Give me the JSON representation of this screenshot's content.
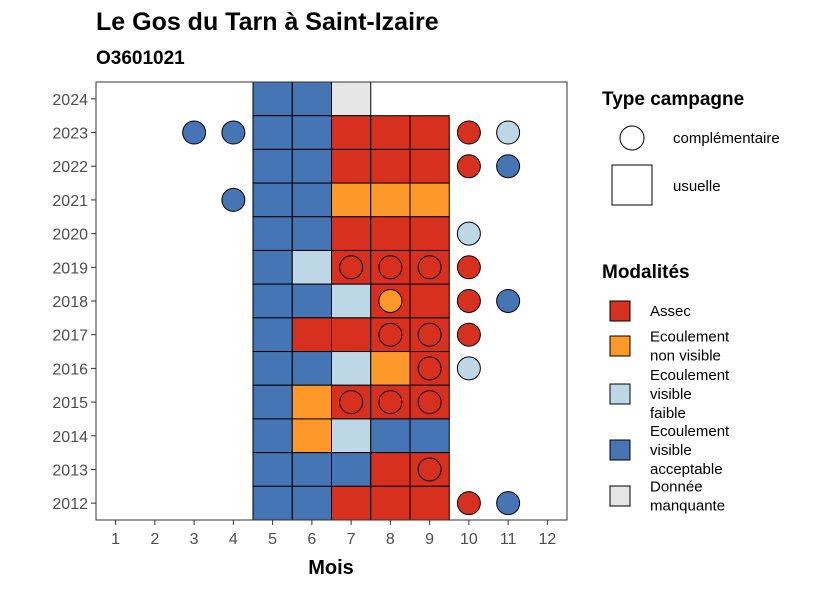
{
  "chart_data": {
    "type": "heatmap",
    "title": "Le Gos du Tarn à Saint-Izaire",
    "subtitle": "O3601021",
    "xlabel": "Mois",
    "ylabel": "",
    "x_ticks": [
      "1",
      "2",
      "3",
      "4",
      "5",
      "6",
      "7",
      "8",
      "9",
      "10",
      "11",
      "12"
    ],
    "y_ticks": [
      "2012",
      "2013",
      "2014",
      "2015",
      "2016",
      "2017",
      "2018",
      "2019",
      "2020",
      "2021",
      "2022",
      "2023",
      "2024"
    ],
    "xlim": [
      0.5,
      12.5
    ],
    "ylim": [
      2011.5,
      2024.5
    ],
    "grid": false,
    "colors": {
      "assec": "#d7301f",
      "ecoulement_non_visible": "#fe9929",
      "ecoulement_visible_faible": "#bdd7e7",
      "ecoulement_visible_acceptable": "#4575b4",
      "donnee_manquante": "#e6e6e6"
    },
    "legend_type": {
      "title": "Type campagne",
      "items": [
        {
          "key": "complementaire",
          "label": "complémentaire",
          "shape": "circle"
        },
        {
          "key": "usuelle",
          "label": "usuelle",
          "shape": "square"
        }
      ]
    },
    "legend_modalites": {
      "title": "Modalités",
      "items": [
        {
          "key": "assec",
          "lines": [
            "Assec"
          ]
        },
        {
          "key": "ecoulement_non_visible",
          "lines": [
            "Ecoulement",
            "non visible"
          ]
        },
        {
          "key": "ecoulement_visible_faible",
          "lines": [
            "Ecoulement",
            "visible",
            "faible"
          ]
        },
        {
          "key": "ecoulement_visible_acceptable",
          "lines": [
            "Ecoulement",
            "visible",
            "acceptable"
          ]
        },
        {
          "key": "donnee_manquante",
          "lines": [
            "Donnée",
            "manquante"
          ]
        }
      ]
    },
    "usuelle": [
      {
        "year": 2024,
        "month": 5,
        "mod": "ecoulement_visible_acceptable"
      },
      {
        "year": 2024,
        "month": 6,
        "mod": "ecoulement_visible_acceptable"
      },
      {
        "year": 2024,
        "month": 7,
        "mod": "donnee_manquante"
      },
      {
        "year": 2023,
        "month": 5,
        "mod": "ecoulement_visible_acceptable"
      },
      {
        "year": 2023,
        "month": 6,
        "mod": "ecoulement_visible_acceptable"
      },
      {
        "year": 2023,
        "month": 7,
        "mod": "assec"
      },
      {
        "year": 2023,
        "month": 8,
        "mod": "assec"
      },
      {
        "year": 2023,
        "month": 9,
        "mod": "assec"
      },
      {
        "year": 2022,
        "month": 5,
        "mod": "ecoulement_visible_acceptable"
      },
      {
        "year": 2022,
        "month": 6,
        "mod": "ecoulement_visible_acceptable"
      },
      {
        "year": 2022,
        "month": 7,
        "mod": "assec"
      },
      {
        "year": 2022,
        "month": 8,
        "mod": "assec"
      },
      {
        "year": 2022,
        "month": 9,
        "mod": "assec"
      },
      {
        "year": 2021,
        "month": 5,
        "mod": "ecoulement_visible_acceptable"
      },
      {
        "year": 2021,
        "month": 6,
        "mod": "ecoulement_visible_acceptable"
      },
      {
        "year": 2021,
        "month": 7,
        "mod": "ecoulement_non_visible"
      },
      {
        "year": 2021,
        "month": 8,
        "mod": "ecoulement_non_visible"
      },
      {
        "year": 2021,
        "month": 9,
        "mod": "ecoulement_non_visible"
      },
      {
        "year": 2020,
        "month": 5,
        "mod": "ecoulement_visible_acceptable"
      },
      {
        "year": 2020,
        "month": 6,
        "mod": "ecoulement_visible_acceptable"
      },
      {
        "year": 2020,
        "month": 7,
        "mod": "assec"
      },
      {
        "year": 2020,
        "month": 8,
        "mod": "assec"
      },
      {
        "year": 2020,
        "month": 9,
        "mod": "assec"
      },
      {
        "year": 2019,
        "month": 5,
        "mod": "ecoulement_visible_acceptable"
      },
      {
        "year": 2019,
        "month": 6,
        "mod": "ecoulement_visible_faible"
      },
      {
        "year": 2019,
        "month": 7,
        "mod": "assec"
      },
      {
        "year": 2019,
        "month": 8,
        "mod": "assec"
      },
      {
        "year": 2019,
        "month": 9,
        "mod": "assec"
      },
      {
        "year": 2018,
        "month": 5,
        "mod": "ecoulement_visible_acceptable"
      },
      {
        "year": 2018,
        "month": 6,
        "mod": "ecoulement_visible_acceptable"
      },
      {
        "year": 2018,
        "month": 7,
        "mod": "ecoulement_visible_faible"
      },
      {
        "year": 2018,
        "month": 8,
        "mod": "assec"
      },
      {
        "year": 2018,
        "month": 9,
        "mod": "assec"
      },
      {
        "year": 2017,
        "month": 5,
        "mod": "ecoulement_visible_acceptable"
      },
      {
        "year": 2017,
        "month": 6,
        "mod": "assec"
      },
      {
        "year": 2017,
        "month": 7,
        "mod": "assec"
      },
      {
        "year": 2017,
        "month": 8,
        "mod": "assec"
      },
      {
        "year": 2017,
        "month": 9,
        "mod": "assec"
      },
      {
        "year": 2016,
        "month": 5,
        "mod": "ecoulement_visible_acceptable"
      },
      {
        "year": 2016,
        "month": 6,
        "mod": "ecoulement_visible_acceptable"
      },
      {
        "year": 2016,
        "month": 7,
        "mod": "ecoulement_visible_faible"
      },
      {
        "year": 2016,
        "month": 8,
        "mod": "ecoulement_non_visible"
      },
      {
        "year": 2016,
        "month": 9,
        "mod": "assec"
      },
      {
        "year": 2015,
        "month": 5,
        "mod": "ecoulement_visible_acceptable"
      },
      {
        "year": 2015,
        "month": 6,
        "mod": "ecoulement_non_visible"
      },
      {
        "year": 2015,
        "month": 7,
        "mod": "assec"
      },
      {
        "year": 2015,
        "month": 8,
        "mod": "assec"
      },
      {
        "year": 2015,
        "month": 9,
        "mod": "assec"
      },
      {
        "year": 2014,
        "month": 5,
        "mod": "ecoulement_visible_acceptable"
      },
      {
        "year": 2014,
        "month": 6,
        "mod": "ecoulement_non_visible"
      },
      {
        "year": 2014,
        "month": 7,
        "mod": "ecoulement_visible_faible"
      },
      {
        "year": 2014,
        "month": 8,
        "mod": "ecoulement_visible_acceptable"
      },
      {
        "year": 2014,
        "month": 9,
        "mod": "ecoulement_visible_acceptable"
      },
      {
        "year": 2013,
        "month": 5,
        "mod": "ecoulement_visible_acceptable"
      },
      {
        "year": 2013,
        "month": 6,
        "mod": "ecoulement_visible_acceptable"
      },
      {
        "year": 2013,
        "month": 7,
        "mod": "ecoulement_visible_acceptable"
      },
      {
        "year": 2013,
        "month": 8,
        "mod": "assec"
      },
      {
        "year": 2013,
        "month": 9,
        "mod": "assec"
      },
      {
        "year": 2012,
        "month": 5,
        "mod": "ecoulement_visible_acceptable"
      },
      {
        "year": 2012,
        "month": 6,
        "mod": "ecoulement_visible_acceptable"
      },
      {
        "year": 2012,
        "month": 7,
        "mod": "assec"
      },
      {
        "year": 2012,
        "month": 8,
        "mod": "assec"
      },
      {
        "year": 2012,
        "month": 9,
        "mod": "assec"
      }
    ],
    "complementaire": [
      {
        "year": 2023,
        "month": 3,
        "mod": "ecoulement_visible_acceptable"
      },
      {
        "year": 2023,
        "month": 4,
        "mod": "ecoulement_visible_acceptable"
      },
      {
        "year": 2023,
        "month": 10,
        "mod": "assec"
      },
      {
        "year": 2023,
        "month": 11,
        "mod": "ecoulement_visible_faible"
      },
      {
        "year": 2022,
        "month": 10,
        "mod": "assec"
      },
      {
        "year": 2022,
        "month": 11,
        "mod": "ecoulement_visible_acceptable"
      },
      {
        "year": 2021,
        "month": 4,
        "mod": "ecoulement_visible_acceptable"
      },
      {
        "year": 2020,
        "month": 10,
        "mod": "ecoulement_visible_faible"
      },
      {
        "year": 2019,
        "month": 7,
        "mod": "assec"
      },
      {
        "year": 2019,
        "month": 8,
        "mod": "assec"
      },
      {
        "year": 2019,
        "month": 9,
        "mod": "assec"
      },
      {
        "year": 2019,
        "month": 10,
        "mod": "assec"
      },
      {
        "year": 2018,
        "month": 8,
        "mod": "ecoulement_non_visible"
      },
      {
        "year": 2018,
        "month": 10,
        "mod": "assec"
      },
      {
        "year": 2018,
        "month": 11,
        "mod": "ecoulement_visible_acceptable"
      },
      {
        "year": 2017,
        "month": 8,
        "mod": "assec"
      },
      {
        "year": 2017,
        "month": 9,
        "mod": "assec"
      },
      {
        "year": 2017,
        "month": 10,
        "mod": "assec"
      },
      {
        "year": 2016,
        "month": 9,
        "mod": "assec"
      },
      {
        "year": 2016,
        "month": 10,
        "mod": "ecoulement_visible_faible"
      },
      {
        "year": 2015,
        "month": 7,
        "mod": "assec"
      },
      {
        "year": 2015,
        "month": 8,
        "mod": "assec"
      },
      {
        "year": 2015,
        "month": 9,
        "mod": "assec"
      },
      {
        "year": 2013,
        "month": 9,
        "mod": "assec"
      },
      {
        "year": 2012,
        "month": 10,
        "mod": "assec"
      },
      {
        "year": 2012,
        "month": 11,
        "mod": "ecoulement_visible_acceptable"
      }
    ]
  }
}
